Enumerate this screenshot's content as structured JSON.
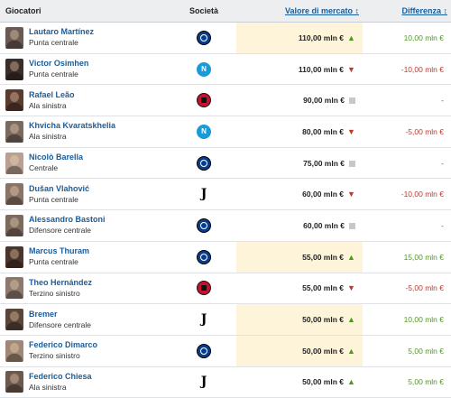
{
  "header": {
    "player_col": "Giocatori",
    "club_col": "Società",
    "value_col": "Valore di mercato",
    "value_sort_icon": "↕",
    "diff_col": "Differenza",
    "diff_sort_icon": "↕"
  },
  "rows": [
    {
      "name": "Lautaro Martínez",
      "position": "Punta centrale",
      "club_icon": "inter-crest-icon",
      "value": "110,00 mln €",
      "trend": "up",
      "diff": "10,00 mln €",
      "diff_sign": "positive",
      "highlight": true,
      "photo_color": "#6b5a52"
    },
    {
      "name": "Victor Osimhen",
      "position": "Punta centrale",
      "club_icon": "napoli-crest-icon",
      "value": "110,00 mln €",
      "trend": "down",
      "diff": "-10,00 mln €",
      "diff_sign": "negative",
      "highlight": false,
      "photo_color": "#3b2e2a"
    },
    {
      "name": "Rafael Leão",
      "position": "Ala sinistra",
      "club_icon": "milan-crest-icon",
      "value": "90,00 mln €",
      "trend": "flat",
      "diff": "-",
      "diff_sign": "zero",
      "highlight": false,
      "photo_color": "#5a3b2e"
    },
    {
      "name": "Khvicha Kvaratskhelia",
      "position": "Ala sinistra",
      "club_icon": "napoli-crest-icon",
      "value": "80,00 mln €",
      "trend": "down",
      "diff": "-5,00 mln €",
      "diff_sign": "negative",
      "highlight": false,
      "photo_color": "#7a6a60"
    },
    {
      "name": "Nicolò Barella",
      "position": "Centrale",
      "club_icon": "inter-crest-icon",
      "value": "75,00 mln €",
      "trend": "flat",
      "diff": "-",
      "diff_sign": "zero",
      "highlight": false,
      "photo_color": "#b9a090"
    },
    {
      "name": "Dušan Vlahović",
      "position": "Punta centrale",
      "club_icon": "juventus-crest-icon",
      "value": "60,00 mln €",
      "trend": "down",
      "diff": "-10,00 mln €",
      "diff_sign": "negative",
      "highlight": false,
      "photo_color": "#8a7468"
    },
    {
      "name": "Alessandro Bastoni",
      "position": "Difensore centrale",
      "club_icon": "inter-crest-icon",
      "value": "60,00 mln €",
      "trend": "flat",
      "diff": "-",
      "diff_sign": "zero",
      "highlight": false,
      "photo_color": "#7d6b5f"
    },
    {
      "name": "Marcus Thuram",
      "position": "Punta centrale",
      "club_icon": "inter-crest-icon",
      "value": "55,00 mln €",
      "trend": "up",
      "diff": "15,00 mln €",
      "diff_sign": "positive",
      "highlight": true,
      "photo_color": "#4a342b"
    },
    {
      "name": "Theo Hernández",
      "position": "Terzino sinistro",
      "club_icon": "milan-crest-icon",
      "value": "55,00 mln €",
      "trend": "down",
      "diff": "-5,00 mln €",
      "diff_sign": "negative",
      "highlight": false,
      "photo_color": "#8d7a6c"
    },
    {
      "name": "Bremer",
      "position": "Difensore centrale",
      "club_icon": "juventus-crest-icon",
      "value": "50,00 mln €",
      "trend": "up",
      "diff": "10,00 mln €",
      "diff_sign": "positive",
      "highlight": true,
      "photo_color": "#5b4438"
    },
    {
      "name": "Federico Dimarco",
      "position": "Terzino sinistro",
      "club_icon": "inter-crest-icon",
      "value": "50,00 mln €",
      "trend": "up",
      "diff": "5,00 mln €",
      "diff_sign": "positive",
      "highlight": true,
      "photo_color": "#a08875"
    },
    {
      "name": "Federico Chiesa",
      "position": "Ala sinistra",
      "club_icon": "juventus-crest-icon",
      "value": "50,00 mln €",
      "trend": "up",
      "diff": "5,00 mln €",
      "diff_sign": "positive",
      "highlight": false,
      "photo_color": "#6d5a4e"
    }
  ]
}
